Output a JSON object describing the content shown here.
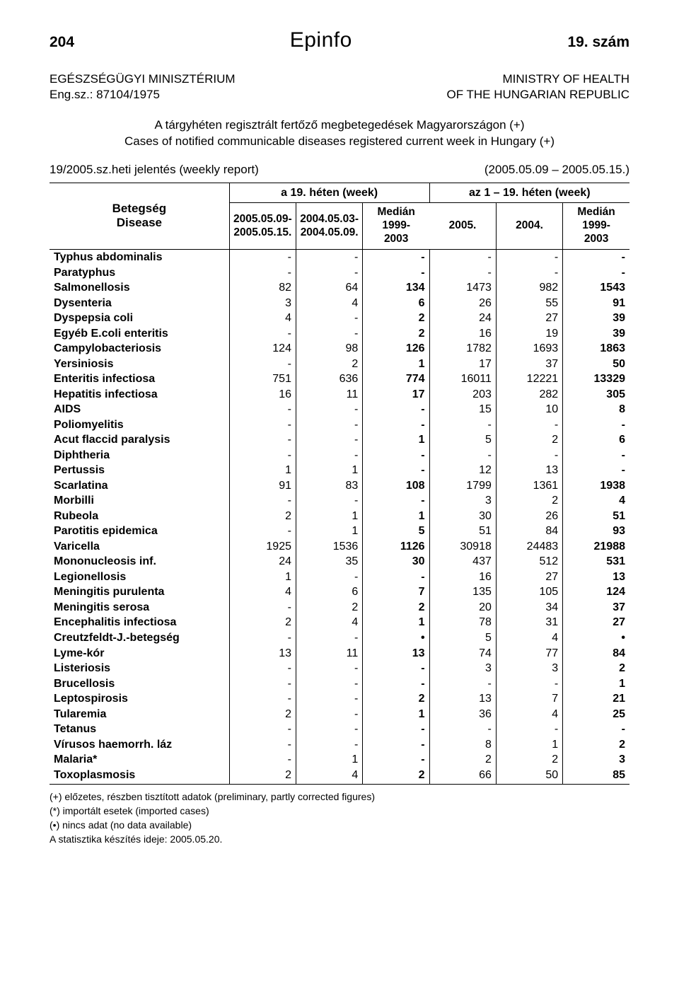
{
  "header": {
    "page_no": "204",
    "logo": "Epinfo",
    "issue": "19. szám"
  },
  "org": {
    "left1": "EGÉSZSÉGÜGYI MINISZTÉRIUM",
    "right1": "MINISTRY OF HEALTH",
    "left2": "Eng.sz.: 87104/1975",
    "right2": "OF THE HUNGARIAN REPUBLIC"
  },
  "title": {
    "line1": "A tárgyhéten regisztrált fertőző megbetegedések Magyarországon (+)",
    "line2": "Cases of notified communicable diseases registered current week in Hungary (+)"
  },
  "report": {
    "left": "19/2005.sz.heti jelentés (weekly report)",
    "right": "(2005.05.09 – 2005.05.15.)"
  },
  "table": {
    "rowhead1": "Betegség",
    "rowhead2": "Disease",
    "group_a": "a 19. héten (week)",
    "group_b": "az 1 – 19. héten (week)",
    "cols": {
      "a1a": "2005.05.09-",
      "a1b": "2005.05.15.",
      "a2a": "2004.05.03-",
      "a2b": "2004.05.09.",
      "a3a": "Medián",
      "a3b": "1999-",
      "a3c": "2003",
      "b1": "2005.",
      "b2": "2004.",
      "b3a": "Medián",
      "b3b": "1999-",
      "b3c": "2003"
    },
    "rows": [
      {
        "n": "Typhus abdominalis",
        "v": [
          "-",
          "-",
          "-",
          "-",
          "-",
          "-"
        ]
      },
      {
        "n": "Paratyphus",
        "v": [
          "-",
          "-",
          "-",
          "-",
          "-",
          "-"
        ]
      },
      {
        "n": "Salmonellosis",
        "v": [
          "82",
          "64",
          "134",
          "1473",
          "982",
          "1543"
        ]
      },
      {
        "n": "Dysenteria",
        "v": [
          "3",
          "4",
          "6",
          "26",
          "55",
          "91"
        ]
      },
      {
        "n": "Dyspepsia coli",
        "v": [
          "4",
          "-",
          "2",
          "24",
          "27",
          "39"
        ]
      },
      {
        "n": "Egyéb E.coli enteritis",
        "v": [
          "-",
          "-",
          "2",
          "16",
          "19",
          "39"
        ]
      },
      {
        "n": "Campylobacteriosis",
        "v": [
          "124",
          "98",
          "126",
          "1782",
          "1693",
          "1863"
        ]
      },
      {
        "n": "Yersiniosis",
        "v": [
          "-",
          "2",
          "1",
          "17",
          "37",
          "50"
        ]
      },
      {
        "n": "Enteritis infectiosa",
        "v": [
          "751",
          "636",
          "774",
          "16011",
          "12221",
          "13329"
        ]
      },
      {
        "n": "Hepatitis infectiosa",
        "v": [
          "16",
          "11",
          "17",
          "203",
          "282",
          "305"
        ]
      },
      {
        "n": "AIDS",
        "v": [
          "-",
          "-",
          "-",
          "15",
          "10",
          "8"
        ]
      },
      {
        "n": "Poliomyelitis",
        "v": [
          "-",
          "-",
          "-",
          "-",
          "-",
          "-"
        ]
      },
      {
        "n": "Acut flaccid paralysis",
        "v": [
          "-",
          "-",
          "1",
          "5",
          "2",
          "6"
        ]
      },
      {
        "n": "Diphtheria",
        "v": [
          "-",
          "-",
          "-",
          "-",
          "-",
          "-"
        ]
      },
      {
        "n": "Pertussis",
        "v": [
          "1",
          "1",
          "-",
          "12",
          "13",
          "-"
        ]
      },
      {
        "n": "Scarlatina",
        "v": [
          "91",
          "83",
          "108",
          "1799",
          "1361",
          "1938"
        ]
      },
      {
        "n": "Morbilli",
        "v": [
          "-",
          "-",
          "-",
          "3",
          "2",
          "4"
        ]
      },
      {
        "n": "Rubeola",
        "v": [
          "2",
          "1",
          "1",
          "30",
          "26",
          "51"
        ]
      },
      {
        "n": "Parotitis epidemica",
        "v": [
          "-",
          "1",
          "5",
          "51",
          "84",
          "93"
        ]
      },
      {
        "n": "Varicella",
        "v": [
          "1925",
          "1536",
          "1126",
          "30918",
          "24483",
          "21988"
        ]
      },
      {
        "n": "Mononucleosis inf.",
        "v": [
          "24",
          "35",
          "30",
          "437",
          "512",
          "531"
        ]
      },
      {
        "n": "Legionellosis",
        "v": [
          "1",
          "-",
          "-",
          "16",
          "27",
          "13"
        ]
      },
      {
        "n": "Meningitis purulenta",
        "v": [
          "4",
          "6",
          "7",
          "135",
          "105",
          "124"
        ]
      },
      {
        "n": "Meningitis serosa",
        "v": [
          "-",
          "2",
          "2",
          "20",
          "34",
          "37"
        ]
      },
      {
        "n": "Encephalitis infectiosa",
        "v": [
          "2",
          "4",
          "1",
          "78",
          "31",
          "27"
        ]
      },
      {
        "n": "Creutzfeldt-J.-betegség",
        "v": [
          "-",
          "-",
          "•",
          "5",
          "4",
          "•"
        ]
      },
      {
        "n": "Lyme-kór",
        "v": [
          "13",
          "11",
          "13",
          "74",
          "77",
          "84"
        ]
      },
      {
        "n": "Listeriosis",
        "v": [
          "-",
          "-",
          "-",
          "3",
          "3",
          "2"
        ]
      },
      {
        "n": "Brucellosis",
        "v": [
          "-",
          "-",
          "-",
          "-",
          "-",
          "1"
        ]
      },
      {
        "n": "Leptospirosis",
        "v": [
          "-",
          "-",
          "2",
          "13",
          "7",
          "21"
        ]
      },
      {
        "n": "Tularemia",
        "v": [
          "2",
          "-",
          "1",
          "36",
          "4",
          "25"
        ]
      },
      {
        "n": "Tetanus",
        "v": [
          "-",
          "-",
          "-",
          "-",
          "-",
          "-"
        ]
      },
      {
        "n": "Vírusos haemorrh. láz",
        "v": [
          "-",
          "-",
          "-",
          "8",
          "1",
          "2"
        ]
      },
      {
        "n": "Malaria*",
        "v": [
          "-",
          "1",
          "-",
          "2",
          "2",
          "3"
        ]
      },
      {
        "n": "Toxoplasmosis",
        "v": [
          "2",
          "4",
          "2",
          "66",
          "50",
          "85"
        ]
      }
    ]
  },
  "footnotes": {
    "f1": "(+)  előzetes, részben tisztított adatok (preliminary, partly corrected figures)",
    "f2": "(*)  importált esetek (imported cases)",
    "f3": "(•)  nincs adat (no data available)",
    "f4": "A statisztika készítés ideje: 2005.05.20."
  }
}
